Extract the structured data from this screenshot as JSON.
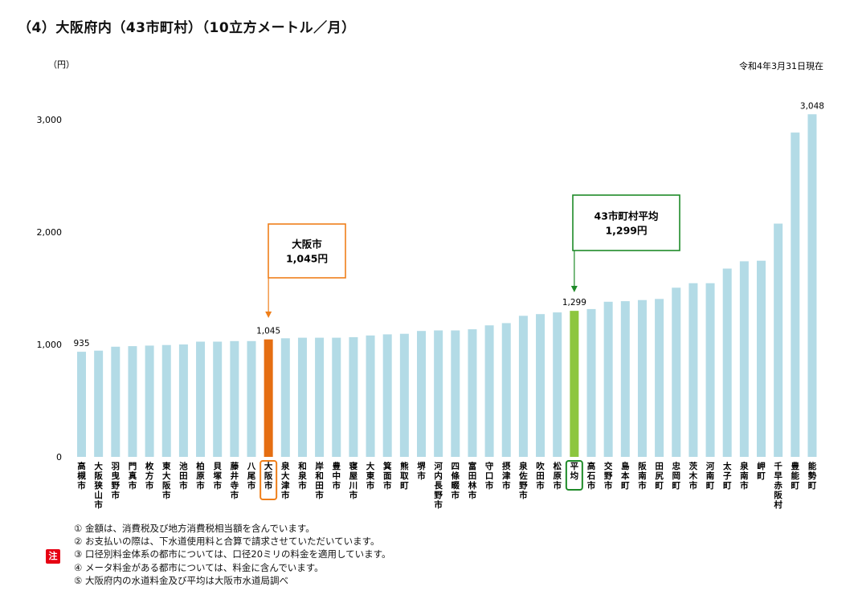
{
  "title": "（4）大阪府内（43市町村）（10立方メートル／月）",
  "y_unit": "（円）",
  "date_note": "令和4年3月31日現在",
  "highlight_color": "#e56e12",
  "average_color": "#8dc63f",
  "bar_color": "#b3dbe6",
  "osaka_box_color": "#ef7f1a",
  "average_box_color": "#1e8a28",
  "callout_osaka": {
    "line1": "大阪市",
    "line2": "1,045円"
  },
  "callout_average": {
    "line1": "43市町村平均",
    "line2": "1,299円"
  },
  "chart_data": {
    "type": "bar",
    "title": "（4）大阪府内（43市町村）（10立方メートル／月）",
    "ylabel": "（円）",
    "ylim": [
      0,
      3000
    ],
    "yticks": [
      0,
      1000,
      2000,
      3000
    ],
    "ytick_labels": [
      "0",
      "1,000",
      "2,000",
      "3,000"
    ],
    "grid": false,
    "categories": [
      "高槻市",
      "大阪狭山市",
      "羽曳野市",
      "門真市",
      "枚方市",
      "東大阪市",
      "池田市",
      "柏原市",
      "貝塚市",
      "藤井寺市",
      "八尾市",
      "大阪市",
      "泉大津市",
      "和泉市",
      "岸和田市",
      "豊中市",
      "寝屋川市",
      "大東市",
      "箕面市",
      "熊取町",
      "堺市",
      "河内長野市",
      "四條畷市",
      "富田林市",
      "守口市",
      "摂津市",
      "泉佐野市",
      "吹田市",
      "松原市",
      "平均",
      "高石市",
      "交野市",
      "島本町",
      "阪南市",
      "田尻町",
      "忠岡町",
      "茨木市",
      "河南町",
      "太子町",
      "泉南市",
      "岬町",
      "千早赤阪村",
      "豊能町",
      "能勢町"
    ],
    "values": [
      935,
      945,
      980,
      985,
      990,
      995,
      1000,
      1025,
      1025,
      1030,
      1030,
      1045,
      1055,
      1060,
      1060,
      1060,
      1065,
      1080,
      1090,
      1095,
      1120,
      1125,
      1125,
      1135,
      1170,
      1190,
      1255,
      1270,
      1285,
      1299,
      1315,
      1380,
      1385,
      1395,
      1405,
      1505,
      1545,
      1545,
      1675,
      1740,
      1745,
      2075,
      2885,
      3048
    ],
    "data_labels": [
      {
        "category": "高槻市",
        "text": "935"
      },
      {
        "category": "大阪市",
        "text": "1,045"
      },
      {
        "category": "平均",
        "text": "1,299"
      },
      {
        "category": "能勢町",
        "text": "3,048"
      }
    ]
  },
  "notes_badge": "注",
  "notes": [
    "① 金額は、消費税及び地方消費税相当額を含んでいます。",
    "② お支払いの際は、下水道使用料と合算で請求させていただいています。",
    "③ 口径別料金体系の都市については、口径20ミリの料金を適用しています。",
    "④ メータ料金がある都市については、料金に含んでいます。",
    "⑤ 大阪府内の水道料金及び平均は大阪市水道局調べ"
  ]
}
